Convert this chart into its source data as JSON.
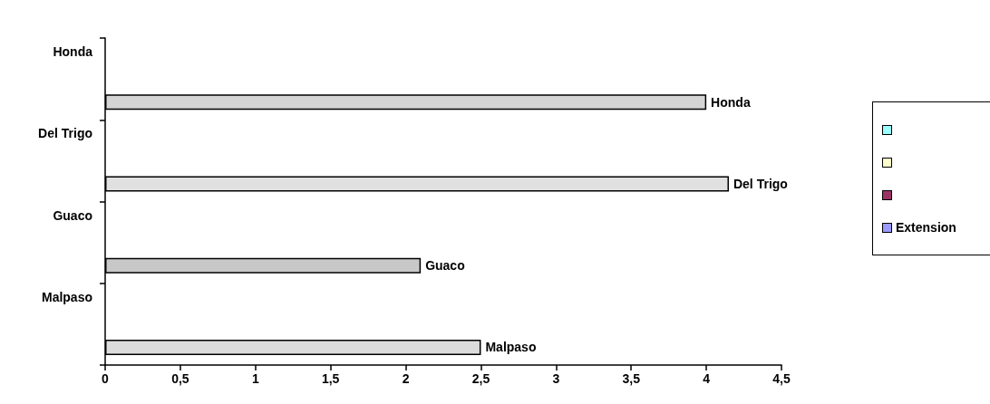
{
  "chart_data": {
    "type": "bar",
    "orientation": "horizontal",
    "categories": [
      "Honda",
      "Del Trigo",
      "Guaco",
      "Malpaso"
    ],
    "series": [
      {
        "color": "#99ffff",
        "values": [
          null,
          null,
          null,
          null
        ]
      },
      {
        "color": "#ffffcc",
        "values": [
          null,
          null,
          null,
          null
        ]
      },
      {
        "color": "#993366",
        "values": [
          null,
          null,
          null,
          null
        ]
      },
      {
        "name": "Extension",
        "color": "#9999ff",
        "colors": [
          "#d4d4d4",
          "#e0e0e0",
          "#c8c8c8",
          "#dcdcdc"
        ],
        "values": [
          4,
          4.15,
          2.1,
          2.5
        ],
        "value_labels": [
          "Honda",
          "Del Trigo",
          "Guaco",
          "Malpaso"
        ]
      }
    ],
    "xlim": [
      0,
      4.5
    ],
    "xticks": [
      0,
      {
        "value": 0.5,
        "label": "0,5"
      },
      1,
      {
        "value": 1.5,
        "label": "1,5"
      },
      2,
      {
        "value": 2.5,
        "label": "2,5"
      },
      3,
      {
        "value": 3.5,
        "label": "3,5"
      },
      4,
      {
        "value": 4.5,
        "label": "4,5"
      }
    ],
    "grid": false,
    "legend": "right"
  }
}
